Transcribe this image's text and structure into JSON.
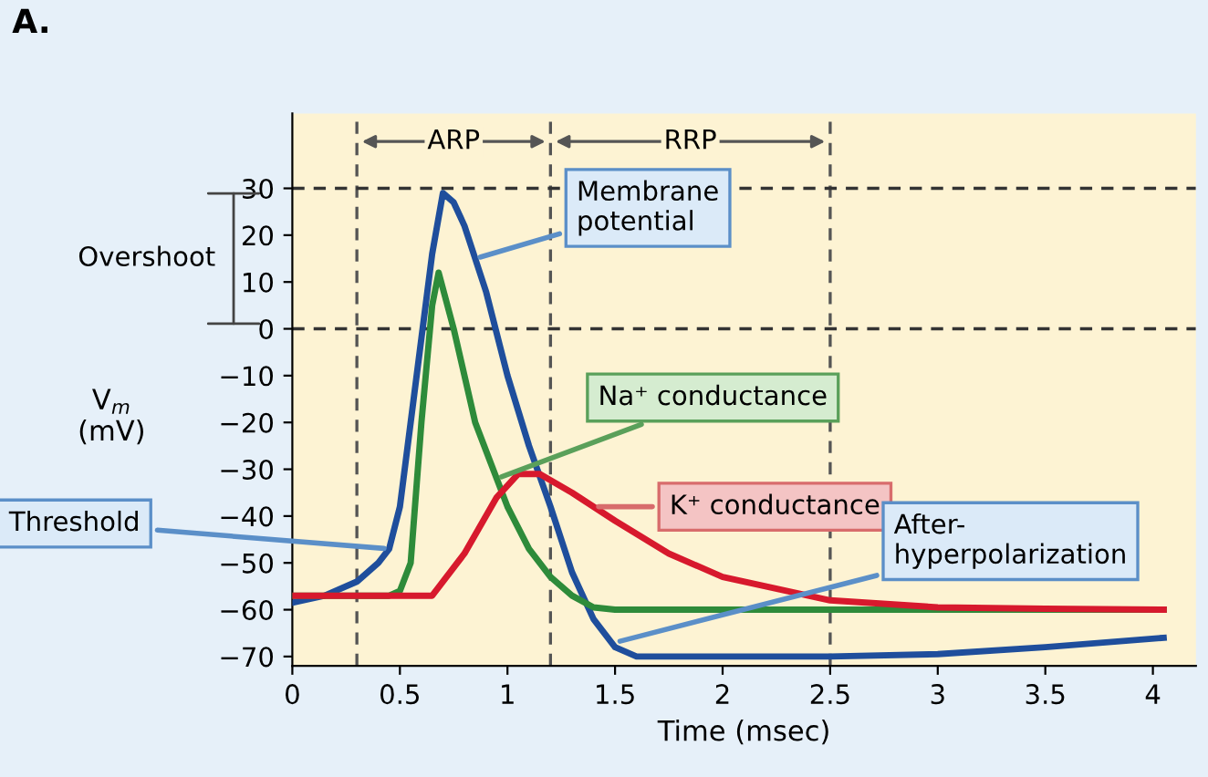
{
  "chart_data": {
    "type": "line",
    "title": "A.",
    "xlabel": "Time (msec)",
    "ylabel": "V$_{m}$\n(mV)",
    "xlim": [
      0,
      4.2
    ],
    "ylim": [
      -72,
      46
    ],
    "xticks": [
      0,
      0.5,
      1,
      1.5,
      2,
      2.5,
      3,
      3.5,
      4
    ],
    "yticks": [
      {
        "value": -70,
        "label": "−70"
      },
      {
        "value": -60,
        "label": "−60"
      },
      {
        "value": -50,
        "label": "−50"
      },
      {
        "value": -40,
        "label": "−40"
      },
      {
        "value": -30,
        "label": "−30"
      },
      {
        "value": -20,
        "label": "−20"
      },
      {
        "value": -10,
        "label": "−10"
      },
      0,
      10,
      20,
      30
    ],
    "grid": false,
    "legend": false,
    "line_style": "solid",
    "series": [
      {
        "color": "#1f4e9c",
        "x": [
          0,
          0.15,
          0.3,
          0.4,
          0.45,
          0.5,
          0.55,
          0.6,
          0.65,
          0.7,
          0.75,
          0.8,
          0.9,
          1.0,
          1.1,
          1.2,
          1.3,
          1.4,
          1.5,
          1.6,
          2,
          2.5,
          3,
          3.5,
          4.05
        ],
        "values": [
          -58.5,
          -57,
          -54,
          -50,
          -47,
          -38,
          -20,
          -2,
          16,
          29,
          27,
          22,
          8,
          -10,
          -25,
          -38,
          -52,
          -62,
          -68,
          -70,
          -70,
          -70,
          -69.5,
          -68,
          -66
        ]
      },
      {
        "color": "#2e8b3a",
        "x": [
          0,
          0.45,
          0.5,
          0.55,
          0.6,
          0.65,
          0.68,
          0.75,
          0.85,
          1.0,
          1.1,
          1.2,
          1.3,
          1.4,
          1.5,
          2,
          3,
          4.05
        ],
        "values": [
          -57,
          -57,
          -56,
          -50,
          -20,
          5,
          12,
          0,
          -20,
          -38,
          -47,
          -53,
          -57,
          -59.5,
          -60,
          -60,
          -60,
          -60
        ]
      },
      {
        "color": "#d7192d",
        "x": [
          0,
          0.5,
          0.65,
          0.8,
          0.95,
          1.05,
          1.15,
          1.3,
          1.5,
          1.75,
          2,
          2.5,
          3,
          3.5,
          4.05
        ],
        "values": [
          -57,
          -57,
          -57,
          -48,
          -36,
          -31,
          -31,
          -35,
          -41,
          -48,
          -53,
          -58,
          -59.5,
          -59.8,
          -60
        ]
      }
    ],
    "ref_lines": [
      {
        "axis": "x",
        "value": 0.3,
        "line_style": "dashed",
        "color": "#555555"
      },
      {
        "axis": "x",
        "value": 1.2,
        "line_style": "dashed",
        "color": "#555555"
      },
      {
        "axis": "x",
        "value": 2.5,
        "line_style": "dashed",
        "color": "#555555"
      },
      {
        "axis": "y",
        "value": 30,
        "line_style": "dashed",
        "color": "#333333"
      },
      {
        "axis": "y",
        "value": 0,
        "line_style": "dashed",
        "color": "#333333"
      }
    ],
    "annotations": [
      {
        "text": "ARP",
        "x": 0.75,
        "y": 40
      },
      {
        "text": "RRP",
        "x": 1.85,
        "y": 40
      },
      "Overshoot",
      {
        "text": "Membrane\npotential",
        "x": 0.85,
        "y": 15
      },
      {
        "text": "Na⁺ conductance",
        "x": 0.95,
        "y": -32
      },
      {
        "text": "K⁺ conductance",
        "x": 1.4,
        "y": -38
      },
      {
        "text": "Threshold",
        "x": 0.45,
        "y": -47
      },
      {
        "text": "After-\nhyperpolarization",
        "x": 1.5,
        "y": -67
      }
    ]
  }
}
